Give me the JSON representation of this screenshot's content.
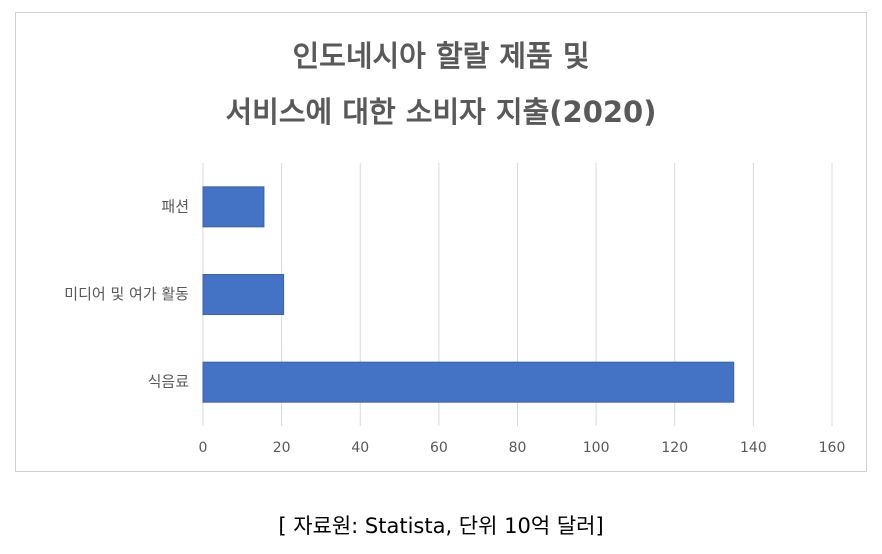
{
  "chart_data": {
    "type": "bar",
    "orientation": "horizontal",
    "title": [
      "인도네시아 할랄 제품 및",
      "서비스에 대한 소비자 지출(2020)"
    ],
    "categories": [
      "패션",
      "미디어 및 여가 활동",
      "식음료"
    ],
    "values": [
      15.5,
      20.5,
      135
    ],
    "color": "#4472c4",
    "xlim": [
      0,
      160
    ],
    "xticks": [
      0,
      20,
      40,
      60,
      80,
      100,
      120,
      140,
      160
    ],
    "grid": true,
    "caption": "[ 자료원: Statista, 단위 10억 달러]"
  }
}
